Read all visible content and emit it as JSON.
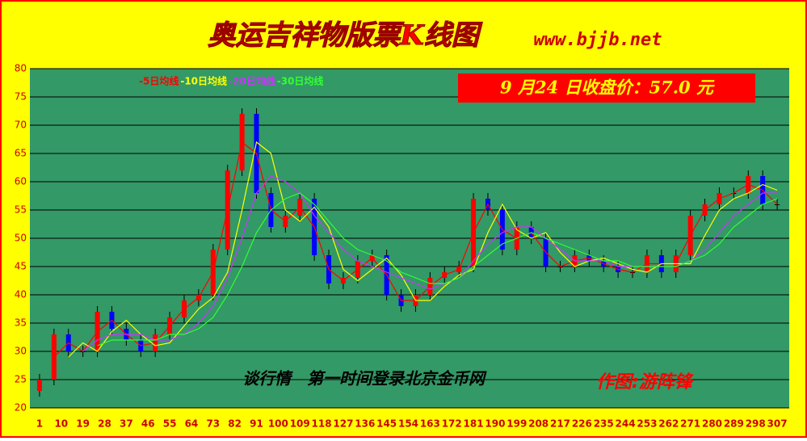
{
  "chart_data": {
    "type": "candlestick",
    "title": "奥运吉祥物版票K线图",
    "subtitle": "www.bjjb.net",
    "price_note": "9 月24 日收盘价：57.0 元",
    "annotation": "谈行情　第一时间登录北京金币网",
    "author": "作图:游阵锋",
    "x": [
      1,
      7,
      13,
      19,
      25,
      31,
      37,
      43,
      49,
      55,
      61,
      67,
      73,
      79,
      85,
      91,
      97,
      103,
      109,
      115,
      121,
      127,
      133,
      139,
      145,
      151,
      157,
      163,
      169,
      175,
      181,
      187,
      193,
      199,
      205,
      211,
      217,
      223,
      229,
      235,
      241,
      247,
      253,
      259,
      265,
      271,
      277,
      283,
      289,
      295,
      301,
      307
    ],
    "open": [
      23,
      25,
      33,
      30,
      30,
      37,
      34,
      32,
      30,
      33,
      36,
      39,
      40,
      48,
      62,
      72,
      58,
      52,
      54,
      57,
      47,
      42,
      43,
      46,
      47,
      40,
      38,
      40,
      43,
      44,
      45,
      57,
      55,
      48,
      52,
      50,
      45,
      45,
      47,
      46,
      45,
      44,
      44,
      47,
      44,
      47,
      54,
      56,
      58,
      58,
      61,
      56
    ],
    "high": [
      26,
      34,
      34,
      31,
      38,
      38,
      35,
      33,
      34,
      37,
      40,
      41,
      49,
      63,
      73,
      73,
      59,
      55,
      58,
      58,
      48,
      44,
      47,
      48,
      48,
      41,
      41,
      44,
      45,
      46,
      58,
      58,
      56,
      53,
      53,
      51,
      46,
      48,
      48,
      47,
      46,
      45,
      48,
      48,
      48,
      55,
      57,
      59,
      59,
      62,
      62,
      57
    ],
    "low": [
      22,
      24,
      29,
      29,
      29,
      33,
      31,
      29,
      29,
      32,
      35,
      38,
      39,
      47,
      61,
      57,
      51,
      51,
      53,
      46,
      41,
      41,
      42,
      45,
      39,
      37,
      37,
      39,
      42,
      43,
      44,
      54,
      47,
      47,
      49,
      44,
      44,
      44,
      45,
      44,
      43,
      43,
      43,
      43,
      43,
      46,
      53,
      55,
      57,
      57,
      55,
      55
    ],
    "close": [
      25,
      33,
      30,
      30,
      37,
      34,
      32,
      30,
      33,
      36,
      39,
      40,
      48,
      62,
      72,
      58,
      52,
      54,
      57,
      47,
      42,
      43,
      46,
      47,
      40,
      38,
      40,
      43,
      44,
      45,
      57,
      55,
      48,
      52,
      50,
      45,
      45,
      47,
      46,
      45,
      44,
      44,
      47,
      44,
      47,
      54,
      56,
      58,
      58,
      61,
      56,
      56
    ],
    "up_color": "#ff0000",
    "down_color": "#0000ff",
    "flat_color": "#000000",
    "series": [
      {
        "name": "-5日均线",
        "color": "#ff0000",
        "values": [
          null,
          29,
          31.5,
          30,
          33.5,
          35.5,
          33,
          31,
          31.5,
          34.5,
          37.5,
          39.5,
          44,
          55,
          67,
          65,
          55,
          53,
          55.5,
          52,
          44.5,
          42.5,
          44.5,
          46.5,
          43.5,
          39,
          39,
          41.5,
          43.5,
          44.5,
          51,
          56,
          51.5,
          50,
          51,
          47.5,
          45,
          46,
          46.5,
          45.5,
          44.5,
          44,
          45.5,
          45.5,
          45.5,
          50.5,
          55,
          57,
          58,
          59.5,
          58.5,
          56
        ]
      },
      {
        "name": "-10日均线",
        "color": "#ffff00",
        "values": [
          null,
          null,
          29,
          31.5,
          30,
          33.5,
          35.5,
          33,
          31,
          31.5,
          34.5,
          37.5,
          39.5,
          44,
          55,
          67,
          65,
          55,
          53,
          55.5,
          52,
          44.5,
          42.5,
          44.5,
          46.5,
          43.5,
          39,
          39,
          41.5,
          43.5,
          44.5,
          51,
          56,
          51.5,
          50,
          51,
          47.5,
          45,
          46,
          46.5,
          45.5,
          44.5,
          44,
          45.5,
          45.5,
          45.5,
          50.5,
          55,
          57,
          58,
          59.5,
          58.5
        ]
      },
      {
        "name": "-20日均线",
        "color": "#cc33ff",
        "values": [
          null,
          null,
          null,
          30,
          32,
          33,
          33,
          33,
          32,
          32,
          33,
          35,
          38,
          43,
          50,
          58,
          61,
          60,
          58,
          54,
          51,
          48,
          46,
          45,
          44,
          43,
          42,
          41,
          42,
          43,
          46,
          49,
          51,
          52,
          52,
          50,
          48,
          46,
          46,
          46,
          45,
          45,
          45,
          45,
          45,
          46,
          48,
          51,
          54,
          56,
          58,
          58
        ]
      },
      {
        "name": "-30日均线",
        "color": "#33ff33",
        "values": [
          null,
          null,
          null,
          null,
          31,
          32,
          32,
          32,
          32,
          33,
          33,
          34,
          36,
          40,
          45,
          51,
          55,
          57,
          58,
          56,
          53,
          50,
          48,
          47,
          46,
          44,
          43,
          42,
          42,
          43,
          45,
          47,
          49,
          50,
          51,
          50,
          49,
          48,
          47,
          46,
          46,
          45,
          45,
          45,
          45,
          46,
          47,
          49,
          52,
          54,
          56,
          57
        ]
      }
    ],
    "xlim": [
      -3,
      312
    ],
    "xticks": [
      1,
      10,
      19,
      28,
      37,
      46,
      55,
      64,
      73,
      82,
      91,
      100,
      109,
      118,
      127,
      136,
      145,
      154,
      163,
      172,
      181,
      190,
      199,
      208,
      217,
      226,
      235,
      244,
      253,
      262,
      271,
      280,
      289,
      298,
      307
    ],
    "ylim": [
      20,
      80
    ],
    "yticks": [
      20,
      25,
      30,
      35,
      40,
      45,
      50,
      55,
      60,
      65,
      70,
      75,
      80
    ],
    "grid": true,
    "plot_color": "#339966",
    "background": "#ffff00"
  }
}
